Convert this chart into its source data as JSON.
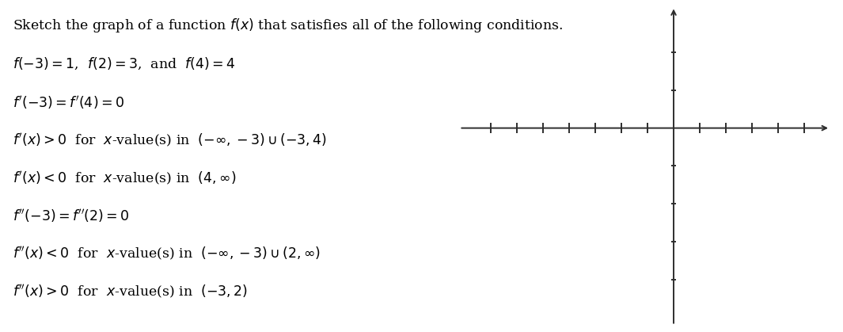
{
  "title": "Sketch the graph of a function $f(x)$ that satisfies all of the following conditions.",
  "conditions": [
    "$f(-3) = 1$,  $f(2) = 3$,  and  $f(4) = 4$",
    "$f'(-3) = f'(4) = 0$",
    "$f'(x) > 0$  for  $x$-value(s) in  $(-\\infty, -3) \\cup (-3, 4)$",
    "$f'(x) < 0$  for  $x$-value(s) in  $(4, \\infty)$",
    "$f''(-3) = f''(2) = 0$",
    "$f''(x) < 0$  for  $x$-value(s) in  $(-\\infty, -3) \\cup (2, \\infty)$",
    "$f''(x) > 0$  for  $x$-value(s) in  $(-3, 2)$"
  ],
  "axis_color": "#2d2d2d",
  "background_color": "#ffffff",
  "title_fontsize": 12.5,
  "conditions_fontsize": 12.5,
  "x_ticks_negative": [
    -7,
    -6,
    -5,
    -4,
    -3,
    -2,
    -1
  ],
  "x_ticks_positive": [
    1,
    2,
    3,
    4,
    5
  ],
  "y_ticks_positive": [
    1,
    2
  ],
  "y_ticks_negative": [
    -1,
    -2,
    -3,
    -4
  ],
  "x_data_min": -8.2,
  "x_data_max": 6.0,
  "y_data_min": -5.2,
  "y_data_max": 3.2,
  "tick_half_len_x": 0.13,
  "tick_half_len_y": 0.1,
  "axis_lw": 1.4,
  "tick_lw": 1.4
}
